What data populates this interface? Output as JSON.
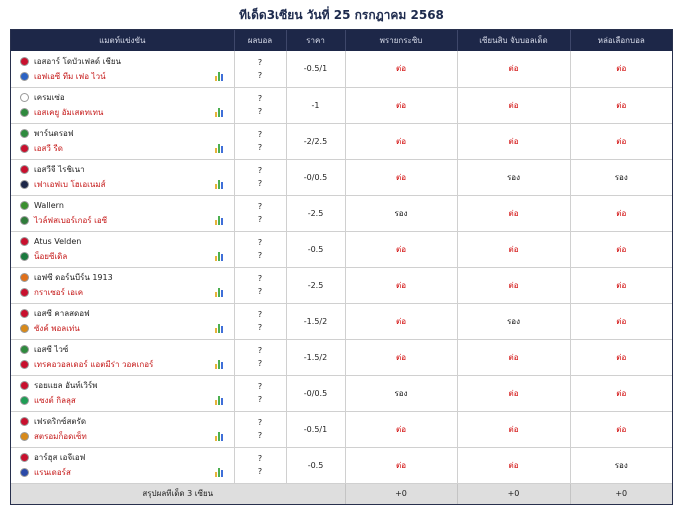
{
  "title": "ทีเด็ด3เซียน วันที่ 25 กรกฎาคม 2568",
  "headers": [
    "แมตท์แข่งขัน",
    "ผลบอล",
    "ราคา",
    "พรายกระซิบ",
    "เซียนสิบ จับบอลเด็ด",
    "หล่อเลือกบอล"
  ],
  "colors": {
    "header_bg": "#1d2748",
    "home_text": "#1f1f1f",
    "away_text": "#c51818",
    "pick_red": "#d00000",
    "footer_bg": "#dedede"
  },
  "rows": [
    {
      "home": "เอสอาร์ โดบัวเฟลด์ เชียน",
      "away": "เอฟเอซี ทีม เฟอ ไวน์",
      "score": [
        "?",
        "?"
      ],
      "odds": "-0.5/1",
      "picks": [
        "ต่อ",
        "ต่อ",
        "ต่อ"
      ],
      "pick_colors": [
        "red",
        "red",
        "red"
      ]
    },
    {
      "home": "เครมเซ่อ",
      "away": "เอสเคยู อัมเสตทเทน",
      "score": [
        "?",
        "?"
      ],
      "odds": "-1",
      "picks": [
        "ต่อ",
        "ต่อ",
        "ต่อ"
      ],
      "pick_colors": [
        "red",
        "red",
        "red"
      ]
    },
    {
      "home": "พาร์นดรอฟ",
      "away": "เอสวี รีด",
      "score": [
        "?",
        "?"
      ],
      "odds": "-2/2.5",
      "picks": [
        "ต่อ",
        "ต่อ",
        "ต่อ"
      ],
      "pick_colors": [
        "red",
        "red",
        "red"
      ]
    },
    {
      "home": "เอสวีจี ไรชิเนา",
      "away": "เฟาเอฟเบ โฮเอเนมส์",
      "score": [
        "?",
        "?"
      ],
      "odds": "-0/0.5",
      "picks": [
        "ต่อ",
        "รอง",
        "รอง"
      ],
      "pick_colors": [
        "red",
        "dark",
        "dark"
      ]
    },
    {
      "home": "Wallern",
      "away": "ไวล์ฟสเบอร์เกอร์ เอซี",
      "score": [
        "?",
        "?"
      ],
      "odds": "-2.5",
      "picks": [
        "รอง",
        "ต่อ",
        "ต่อ"
      ],
      "pick_colors": [
        "dark",
        "red",
        "red"
      ]
    },
    {
      "home": "Atus Velden",
      "away": "น็อยซีเดิล",
      "score": [
        "?",
        "?"
      ],
      "odds": "-0.5",
      "picks": [
        "ต่อ",
        "ต่อ",
        "ต่อ"
      ],
      "pick_colors": [
        "red",
        "red",
        "red"
      ]
    },
    {
      "home": "เอฟซี ดอร์นบีร์น 1913",
      "away": "กราเซอร์ เอเค",
      "score": [
        "?",
        "?"
      ],
      "odds": "-2.5",
      "picks": [
        "ต่อ",
        "ต่อ",
        "ต่อ"
      ],
      "pick_colors": [
        "red",
        "red",
        "red"
      ]
    },
    {
      "home": "เอสซี คาลสดอฟ",
      "away": "ซังค์ พอลเท่น",
      "score": [
        "?",
        "?"
      ],
      "odds": "-1.5/2",
      "picks": [
        "ต่อ",
        "รอง",
        "ต่อ"
      ],
      "pick_colors": [
        "red",
        "dark",
        "red"
      ]
    },
    {
      "home": "เอสซี ไวซ์",
      "away": "เทรคอวอลเดอร์ แอตมีร่า วอคเกอร์",
      "score": [
        "?",
        "?"
      ],
      "odds": "-1.5/2",
      "picks": [
        "ต่อ",
        "ต่อ",
        "ต่อ"
      ],
      "pick_colors": [
        "red",
        "red",
        "red"
      ]
    },
    {
      "home": "รอยแยล อันท์เวิร์พ",
      "away": "แซงต์ กิลลุส",
      "score": [
        "?",
        "?"
      ],
      "odds": "-0/0.5",
      "picks": [
        "รอง",
        "ต่อ",
        "ต่อ"
      ],
      "pick_colors": [
        "dark",
        "red",
        "red"
      ]
    },
    {
      "home": "เฟรดริกซ์สตรัด",
      "away": "สตรอมก็อดเซ็ท",
      "score": [
        "?",
        "?"
      ],
      "odds": "-0.5/1",
      "picks": [
        "ต่อ",
        "ต่อ",
        "ต่อ"
      ],
      "pick_colors": [
        "red",
        "red",
        "red"
      ]
    },
    {
      "home": "อาร์ฮุส เอจีเอฟ",
      "away": "แรนเดอร์ส",
      "score": [
        "?",
        "?"
      ],
      "odds": "-0.5",
      "picks": [
        "ต่อ",
        "ต่อ",
        "รอง"
      ],
      "pick_colors": [
        "red",
        "red",
        "dark"
      ]
    }
  ],
  "footer": {
    "label": "สรุปผลทีเด็ด 3 เซียน",
    "totals": [
      "+0",
      "+0",
      "+0"
    ]
  }
}
